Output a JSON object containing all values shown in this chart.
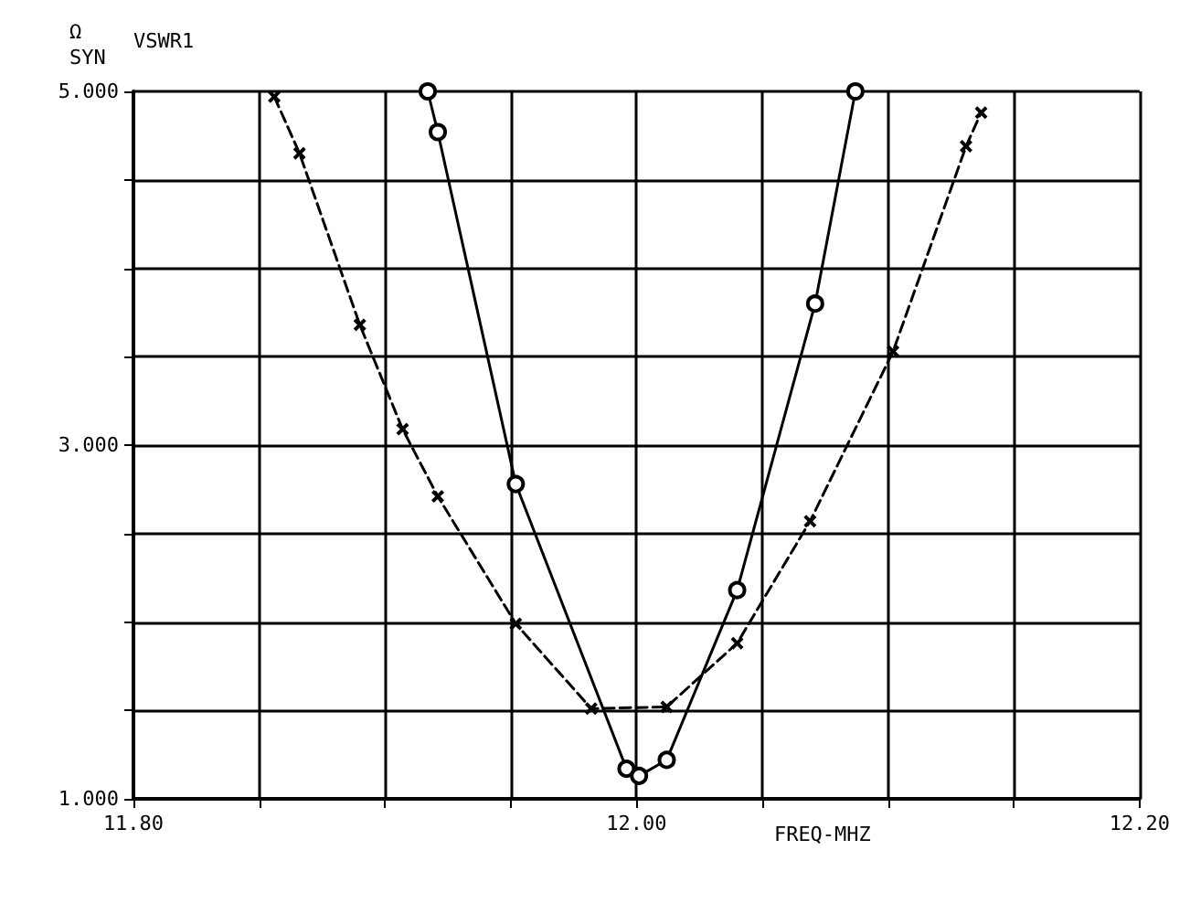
{
  "chart_data": {
    "type": "line",
    "ylabel": "VSWR1",
    "xlabel": "FREQ-MHZ",
    "annotations": [
      "Ω",
      "SYN"
    ],
    "xlim": [
      11.8,
      12.2
    ],
    "xticks": [
      {
        "value": 11.8,
        "label": "11.80"
      },
      {
        "value": 11.85,
        "label": null
      },
      {
        "value": 11.9,
        "label": null
      },
      {
        "value": 11.95,
        "label": null
      },
      {
        "value": 12.0,
        "label": "12.00"
      },
      {
        "value": 12.05,
        "label": null
      },
      {
        "value": 12.1,
        "label": null
      },
      {
        "value": 12.15,
        "label": null
      },
      {
        "value": 12.2,
        "label": "12.20"
      }
    ],
    "ylim": [
      1,
      5
    ],
    "yticks": [
      {
        "value": 1,
        "label": "1.000"
      },
      {
        "value": 1.5,
        "label": null
      },
      {
        "value": 2,
        "label": null
      },
      {
        "value": 2.5,
        "label": null
      },
      {
        "value": 3,
        "label": "3.000"
      },
      {
        "value": 3.5,
        "label": null
      },
      {
        "value": 4,
        "label": null
      },
      {
        "value": 4.5,
        "label": null
      },
      {
        "value": 5,
        "label": "5.000"
      }
    ],
    "grid": true,
    "series": [
      {
        "color": "#000000",
        "line_style": "solid",
        "marker": "circle",
        "x": [
          11.917,
          11.921,
          11.952,
          11.996,
          12.001,
          12.012,
          12.04,
          12.071,
          12.087
        ],
        "values": [
          5.0,
          4.77,
          2.78,
          1.17,
          1.13,
          1.22,
          2.18,
          3.8,
          5.0
        ]
      },
      {
        "color": "#000000",
        "line_style": "dashed",
        "marker": "cross",
        "x": [
          11.856,
          11.866,
          11.89,
          11.907,
          11.921,
          11.952,
          11.982,
          12.012,
          12.04,
          12.069,
          12.102,
          12.131,
          12.137
        ],
        "values": [
          4.97,
          4.65,
          3.68,
          3.09,
          2.71,
          1.99,
          1.51,
          1.52,
          1.88,
          2.57,
          3.53,
          4.69,
          4.88
        ]
      }
    ]
  }
}
